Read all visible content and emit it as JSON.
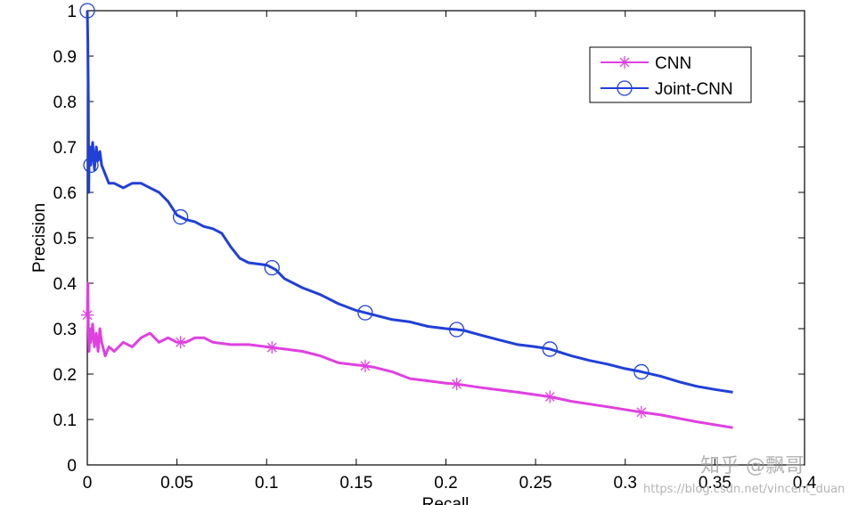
{
  "chart_data": {
    "type": "line",
    "title": "",
    "xlabel": "Recall",
    "ylabel": "Precision",
    "xlim": [
      0,
      0.4
    ],
    "ylim": [
      0,
      1
    ],
    "xticks": [
      "0",
      "0.05",
      "0.1",
      "0.15",
      "0.2",
      "0.25",
      "0.3",
      "0.35",
      "0.4"
    ],
    "yticks": [
      "0",
      "0.1",
      "0.2",
      "0.3",
      "0.4",
      "0.5",
      "0.6",
      "0.7",
      "0.8",
      "0.9",
      "1"
    ],
    "grid": false,
    "legend_position": "top-right",
    "series": [
      {
        "name": "CNN",
        "color": "#e040e0",
        "marker": "asterisk",
        "points": [
          [
            0.0,
            0.33
          ],
          [
            0.0003,
            0.4
          ],
          [
            0.0006,
            0.3
          ],
          [
            0.001,
            0.25
          ],
          [
            0.0015,
            0.3
          ],
          [
            0.002,
            0.27
          ],
          [
            0.003,
            0.31
          ],
          [
            0.004,
            0.26
          ],
          [
            0.005,
            0.29
          ],
          [
            0.006,
            0.25
          ],
          [
            0.007,
            0.3
          ],
          [
            0.008,
            0.27
          ],
          [
            0.01,
            0.24
          ],
          [
            0.012,
            0.26
          ],
          [
            0.015,
            0.25
          ],
          [
            0.02,
            0.27
          ],
          [
            0.025,
            0.26
          ],
          [
            0.03,
            0.28
          ],
          [
            0.035,
            0.29
          ],
          [
            0.04,
            0.27
          ],
          [
            0.045,
            0.28
          ],
          [
            0.05,
            0.27
          ],
          [
            0.055,
            0.27
          ],
          [
            0.06,
            0.28
          ],
          [
            0.065,
            0.28
          ],
          [
            0.07,
            0.27
          ],
          [
            0.08,
            0.265
          ],
          [
            0.09,
            0.265
          ],
          [
            0.1,
            0.26
          ],
          [
            0.11,
            0.255
          ],
          [
            0.12,
            0.25
          ],
          [
            0.13,
            0.24
          ],
          [
            0.14,
            0.225
          ],
          [
            0.15,
            0.22
          ],
          [
            0.155,
            0.218
          ],
          [
            0.16,
            0.215
          ],
          [
            0.17,
            0.205
          ],
          [
            0.18,
            0.19
          ],
          [
            0.19,
            0.185
          ],
          [
            0.2,
            0.18
          ],
          [
            0.206,
            0.178
          ],
          [
            0.22,
            0.17
          ],
          [
            0.24,
            0.16
          ],
          [
            0.258,
            0.15
          ],
          [
            0.27,
            0.14
          ],
          [
            0.29,
            0.128
          ],
          [
            0.309,
            0.116
          ],
          [
            0.32,
            0.11
          ],
          [
            0.34,
            0.095
          ],
          [
            0.36,
            0.082
          ]
        ],
        "marker_x": [
          0.0,
          0.052,
          0.103,
          0.155,
          0.206,
          0.258,
          0.309
        ]
      },
      {
        "name": "Joint-CNN",
        "color": "#2040d8",
        "marker": "circle",
        "points": [
          [
            0.0,
            1.0
          ],
          [
            0.0003,
            0.93
          ],
          [
            0.0006,
            0.8
          ],
          [
            0.0008,
            0.6
          ],
          [
            0.001,
            0.67
          ],
          [
            0.0015,
            0.7
          ],
          [
            0.002,
            0.66
          ],
          [
            0.003,
            0.71
          ],
          [
            0.004,
            0.65
          ],
          [
            0.005,
            0.7
          ],
          [
            0.006,
            0.67
          ],
          [
            0.007,
            0.69
          ],
          [
            0.008,
            0.66
          ],
          [
            0.01,
            0.64
          ],
          [
            0.012,
            0.62
          ],
          [
            0.015,
            0.62
          ],
          [
            0.02,
            0.61
          ],
          [
            0.025,
            0.62
          ],
          [
            0.03,
            0.62
          ],
          [
            0.035,
            0.61
          ],
          [
            0.04,
            0.6
          ],
          [
            0.045,
            0.58
          ],
          [
            0.05,
            0.55
          ],
          [
            0.055,
            0.54
          ],
          [
            0.06,
            0.535
          ],
          [
            0.065,
            0.525
          ],
          [
            0.07,
            0.52
          ],
          [
            0.075,
            0.51
          ],
          [
            0.08,
            0.48
          ],
          [
            0.085,
            0.455
          ],
          [
            0.09,
            0.445
          ],
          [
            0.1,
            0.44
          ],
          [
            0.105,
            0.43
          ],
          [
            0.11,
            0.41
          ],
          [
            0.115,
            0.4
          ],
          [
            0.12,
            0.39
          ],
          [
            0.13,
            0.375
          ],
          [
            0.14,
            0.355
          ],
          [
            0.15,
            0.34
          ],
          [
            0.155,
            0.335
          ],
          [
            0.16,
            0.33
          ],
          [
            0.17,
            0.32
          ],
          [
            0.18,
            0.315
          ],
          [
            0.19,
            0.305
          ],
          [
            0.2,
            0.3
          ],
          [
            0.206,
            0.298
          ],
          [
            0.21,
            0.296
          ],
          [
            0.22,
            0.285
          ],
          [
            0.23,
            0.275
          ],
          [
            0.24,
            0.265
          ],
          [
            0.25,
            0.26
          ],
          [
            0.258,
            0.255
          ],
          [
            0.27,
            0.24
          ],
          [
            0.28,
            0.23
          ],
          [
            0.29,
            0.222
          ],
          [
            0.3,
            0.212
          ],
          [
            0.309,
            0.205
          ],
          [
            0.32,
            0.195
          ],
          [
            0.33,
            0.183
          ],
          [
            0.34,
            0.173
          ],
          [
            0.35,
            0.166
          ],
          [
            0.36,
            0.16
          ]
        ],
        "marker_x": [
          0.0,
          0.002,
          0.052,
          0.103,
          0.155,
          0.206,
          0.258,
          0.309
        ]
      }
    ]
  },
  "watermark": {
    "line1": "知乎 @飘哥",
    "line2": "https://blog.csdn.net/vincent_duan"
  }
}
